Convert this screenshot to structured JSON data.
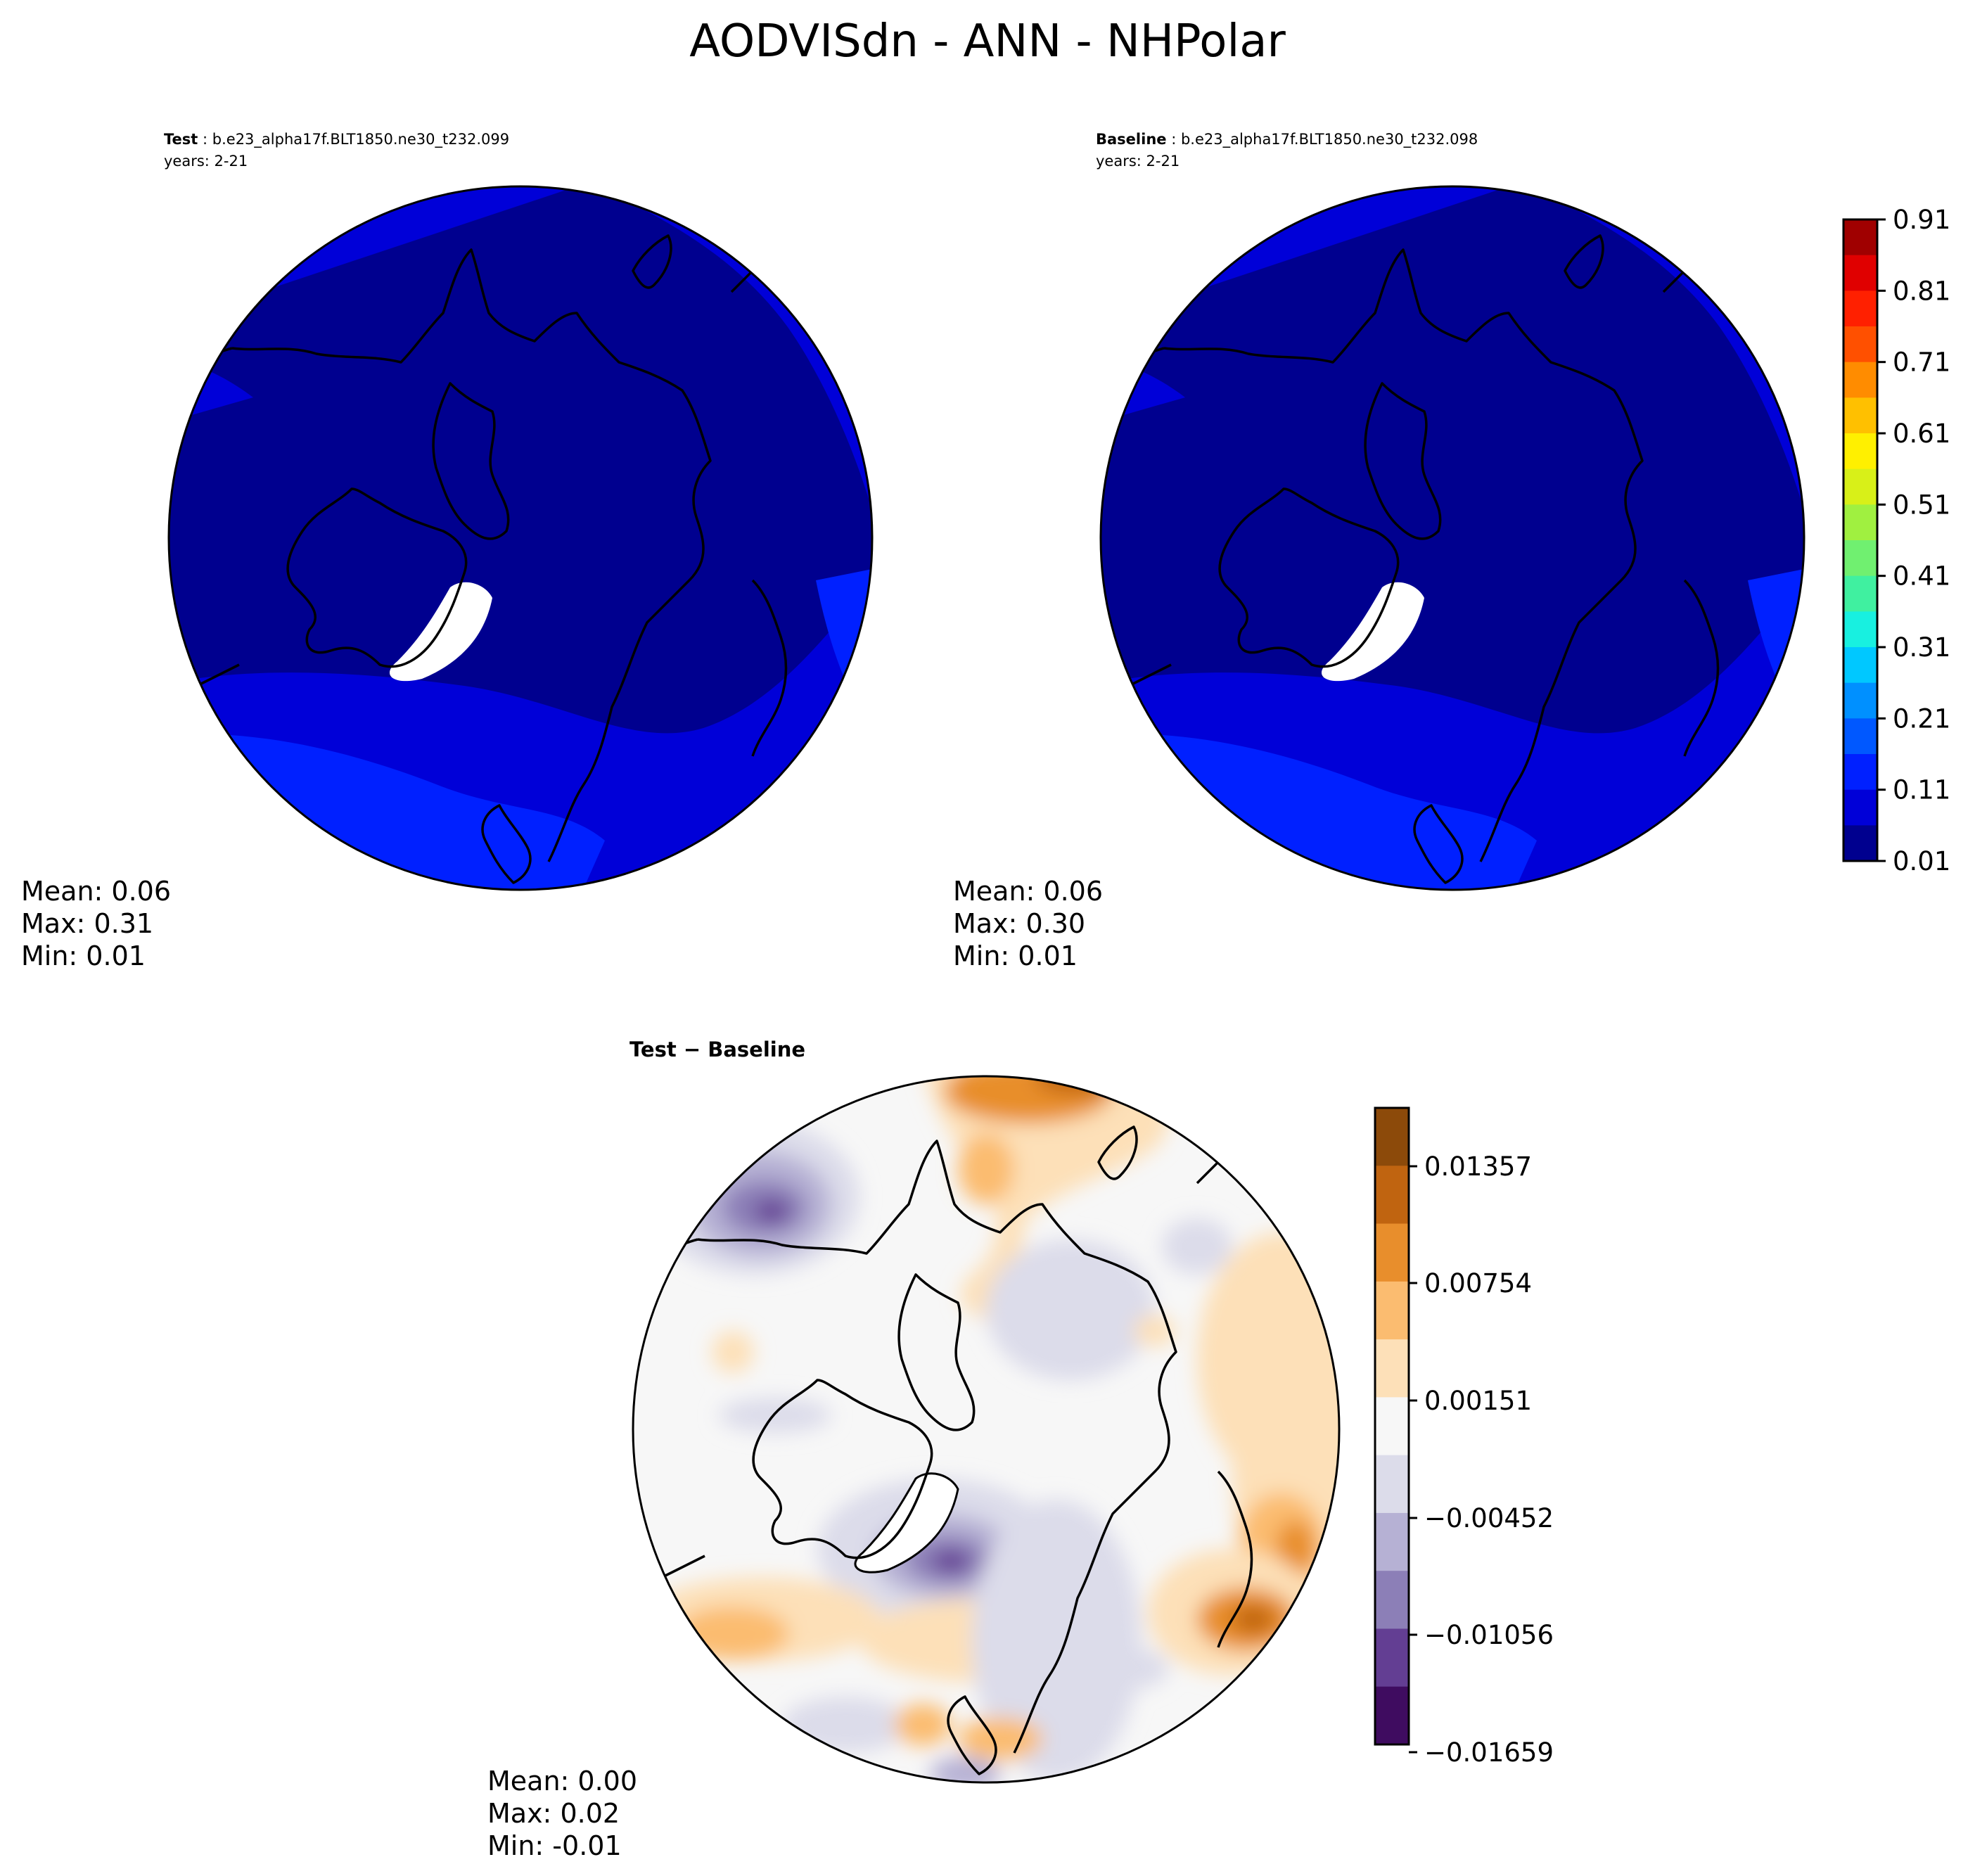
{
  "title": "AODVISdn - ANN - NHPolar",
  "panels": {
    "test": {
      "label": "Test",
      "case": "b.e23_alpha17f.BLT1850.ne30_t232.099",
      "years": "years: 2-21",
      "stats": {
        "mean": "Mean:  0.06",
        "max": "Max:  0.31",
        "min": "Min:  0.01"
      }
    },
    "baseline": {
      "label": "Baseline",
      "case": "b.e23_alpha17f.BLT1850.ne30_t232.098",
      "years": "years: 2-21",
      "stats": {
        "mean": "Mean:  0.06",
        "max": "Max:  0.30",
        "min": "Min:  0.01"
      }
    },
    "diff": {
      "label": "Test − Baseline",
      "stats": {
        "mean": "Mean:  0.00",
        "max": "Max:  0.02",
        "min": "Min: -0.01"
      }
    }
  },
  "colorbar_main": {
    "ticks": [
      "0.01",
      "0.11",
      "0.21",
      "0.31",
      "0.41",
      "0.51",
      "0.61",
      "0.71",
      "0.81",
      "0.91"
    ],
    "colors": [
      "#00008f",
      "#0000d8",
      "#0020ff",
      "#0058ff",
      "#0090ff",
      "#00c8ff",
      "#18f0e0",
      "#40f0a0",
      "#70f070",
      "#a0f040",
      "#d8f018",
      "#fff000",
      "#ffc000",
      "#ff8c00",
      "#ff5000",
      "#ff2000",
      "#e00000",
      "#a00000"
    ],
    "colormap": "jet"
  },
  "colorbar_diff": {
    "ticks": [
      "0.01357",
      "0.00754",
      "0.00151",
      "−0.00452",
      "−0.01056",
      "−0.01659"
    ],
    "colors": [
      "#8c4a0a",
      "#c06410",
      "#e88e2c",
      "#fbbc70",
      "#fde0b8",
      "#f7f7f7",
      "#dcdcea",
      "#b6b1d4",
      "#8c7fb7",
      "#633e93",
      "#3f0c60"
    ],
    "colormap": "PuOr"
  }
}
